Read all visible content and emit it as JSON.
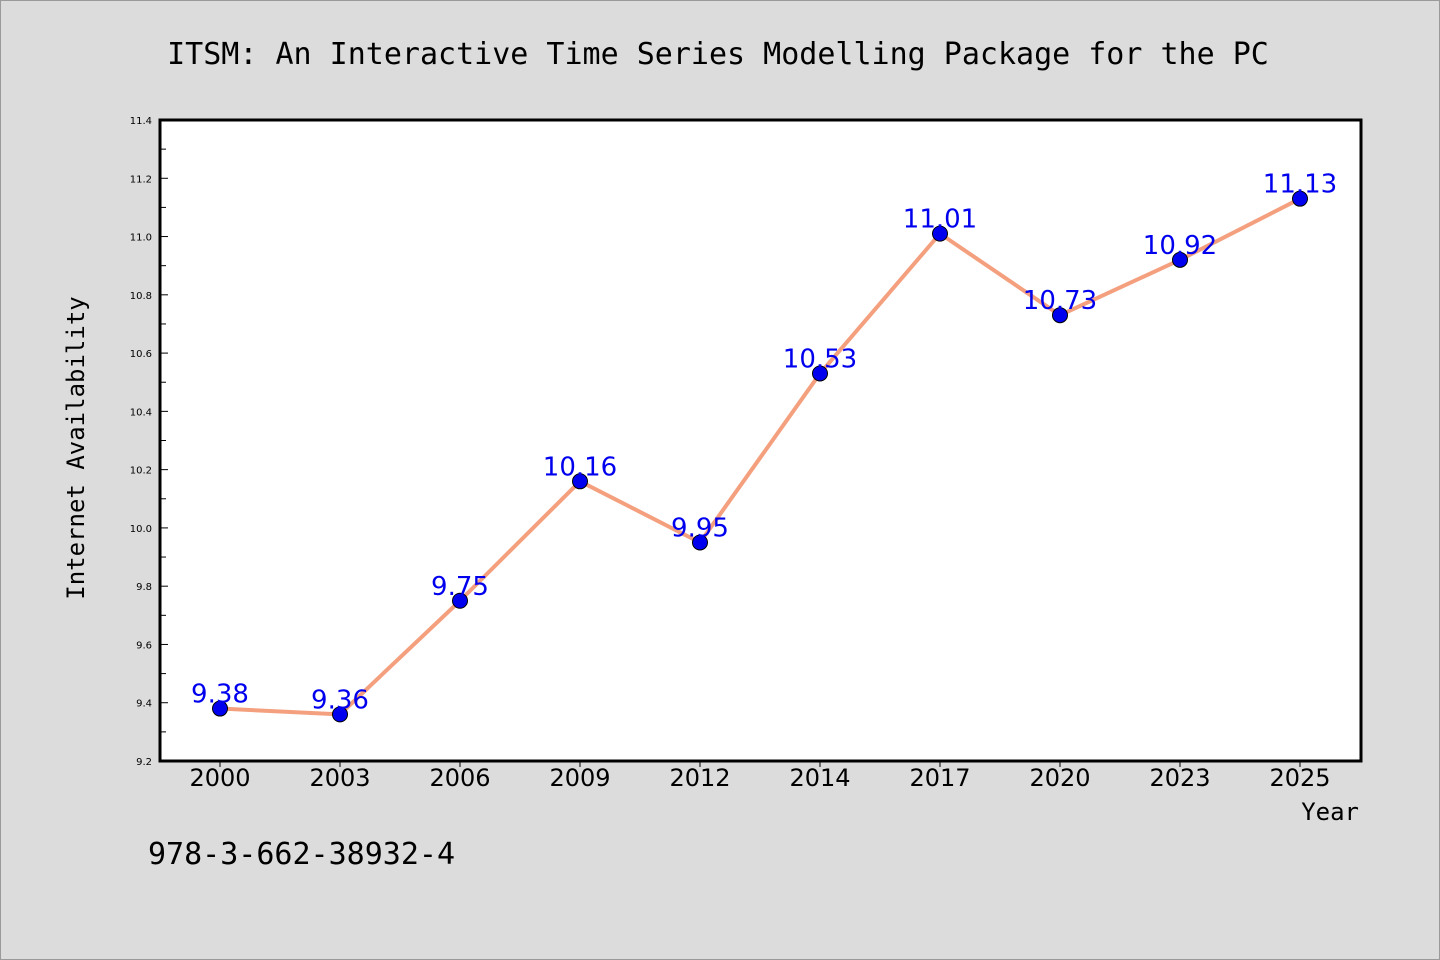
{
  "page": {
    "background": "#dcdcdc",
    "footer_text": "978-3-662-38932-4"
  },
  "chart_data": {
    "type": "line",
    "title": "ITSM: An Interactive Time Series Modelling Package for the PC",
    "xlabel": "Year",
    "ylabel": "Internet Availability",
    "categories": [
      "2000",
      "2003",
      "2006",
      "2009",
      "2012",
      "2014",
      "2017",
      "2020",
      "2023",
      "2025"
    ],
    "series": [
      {
        "values": [
          9.38,
          9.36,
          9.75,
          10.16,
          9.95,
          10.53,
          11.01,
          10.73,
          10.92,
          11.13
        ],
        "labels": [
          "9.38",
          "9.36",
          "9.75",
          "10.16",
          "9.95",
          "10.53",
          "11.01",
          "10.73",
          "10.92",
          "11.13"
        ],
        "line_color": "#f4a07e",
        "marker_color": "#0000ee",
        "label_color": "#0000ee"
      }
    ],
    "ylim": [
      9.2,
      11.4
    ],
    "yticks": [
      "9.2",
      "9.4",
      "9.6",
      "9.8",
      "10.0",
      "10.2",
      "10.4",
      "10.6",
      "10.8",
      "11.0",
      "11.2",
      "11.4"
    ],
    "grid": false,
    "legend": "none",
    "plot_background": "#ffffff"
  }
}
